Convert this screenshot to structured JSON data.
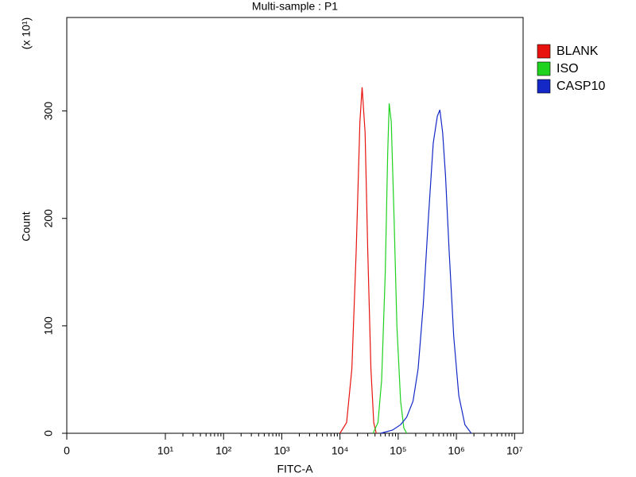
{
  "chart_data": {
    "type": "line",
    "title": "Multi-sample : P1",
    "x_label": "FITC-A",
    "y_label": "Count",
    "y_multiplier": "(x 10¹)",
    "xscale": "log",
    "xlim": [
      0,
      14000000
    ],
    "xticks": [
      0,
      {
        "value": 10,
        "label": "10¹"
      },
      {
        "value": 100,
        "label": "10²"
      },
      {
        "value": 1000,
        "label": "10³"
      },
      {
        "value": 10000,
        "label": "10⁴"
      },
      {
        "value": 100000,
        "label": "10⁵"
      },
      {
        "value": 1000000,
        "label": "10⁶"
      },
      {
        "value": 10000000,
        "label": "10⁷"
      }
    ],
    "ylim": [
      0,
      387
    ],
    "yticks": [
      0,
      100,
      200,
      300
    ],
    "legend": "right",
    "series": [
      {
        "name": "BLANK",
        "color": "#e8130f",
        "x": [
          10000,
          13000,
          16000,
          19000,
          22000,
          24000,
          27000,
          30000,
          34000,
          38000,
          42000
        ],
        "values": [
          0,
          10,
          60,
          170,
          290,
          322,
          280,
          170,
          60,
          10,
          0
        ]
      },
      {
        "name": "ISO",
        "color": "#1ed21e",
        "x": [
          37000,
          45000,
          52000,
          60000,
          66000,
          70000,
          76000,
          85000,
          95000,
          110000,
          125000,
          140000
        ],
        "values": [
          0,
          10,
          50,
          150,
          260,
          307,
          290,
          200,
          100,
          30,
          5,
          0
        ]
      },
      {
        "name": "CASP10",
        "color": "#1428c8",
        "x": [
          50000,
          80000,
          110000,
          140000,
          180000,
          220000,
          270000,
          330000,
          400000,
          470000,
          520000,
          580000,
          650000,
          750000,
          900000,
          1100000,
          1400000,
          1800000
        ],
        "values": [
          0,
          3,
          8,
          15,
          30,
          60,
          120,
          200,
          270,
          295,
          301,
          280,
          240,
          170,
          90,
          35,
          8,
          0
        ]
      }
    ]
  }
}
